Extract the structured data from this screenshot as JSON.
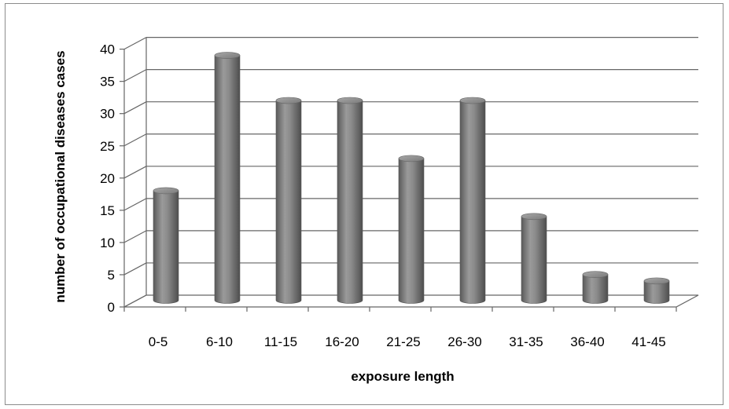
{
  "chart_data": {
    "type": "bar",
    "style": "3d-cylinder",
    "categories": [
      "0-5",
      "6-10",
      "11-15",
      "16-20",
      "21-25",
      "26-30",
      "31-35",
      "36-40",
      "41-45"
    ],
    "values": [
      17,
      38,
      31,
      31,
      22,
      31,
      13,
      4,
      3
    ],
    "yticks": [
      0,
      5,
      10,
      15,
      20,
      25,
      30,
      35,
      40
    ],
    "ylim": [
      0,
      40
    ],
    "xlabel": "exposure length",
    "ylabel": "number of occupational diseases cases",
    "grid": true,
    "legend": "none",
    "colors": {
      "bar": "#8a8a8a",
      "grid": "#666666"
    }
  }
}
